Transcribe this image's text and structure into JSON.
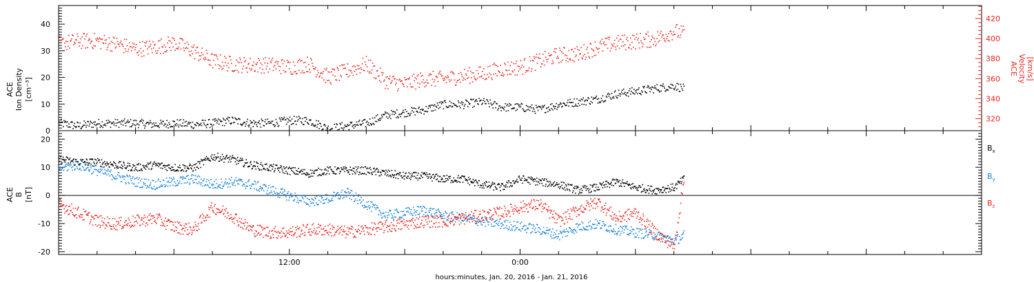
{
  "colors": {
    "black": "#000000",
    "red": "#e8221a",
    "blue": "#1a82d8",
    "frame": "#000000"
  },
  "chart_data": [
    {
      "type": "scatter",
      "panel": "plasma",
      "ylabel_lines": [
        "ACE",
        "Ion Density",
        "[cm⁻³]"
      ],
      "ylim": [
        0,
        47
      ],
      "yticks": [
        "0",
        "10",
        "20",
        "30",
        "40"
      ],
      "right_axis": {
        "label_lines": [
          "ACE",
          "Velocity",
          "[km/s]"
        ],
        "ylim": [
          308,
          433
        ],
        "yticks": [
          "320",
          "340",
          "360",
          "380",
          "400",
          "420"
        ]
      },
      "xlim_hours": [
        0,
        48
      ],
      "data_end_hour": 32.5,
      "series": [
        {
          "color_key": "black",
          "axis": "left",
          "note": "ion density, points approx every 7 minutes",
          "anchors": [
            [
              0,
              3
            ],
            [
              1,
              2
            ],
            [
              2,
              3
            ],
            [
              3,
              3
            ],
            [
              4,
              3
            ],
            [
              5,
              2.5
            ],
            [
              6,
              3
            ],
            [
              7,
              2.5
            ],
            [
              8,
              3
            ],
            [
              9,
              4
            ],
            [
              10,
              3
            ],
            [
              11,
              3
            ],
            [
              12,
              4
            ],
            [
              13,
              4
            ],
            [
              14,
              1
            ],
            [
              15,
              2
            ],
            [
              16,
              3
            ],
            [
              17,
              6
            ],
            [
              18,
              7
            ],
            [
              19,
              8
            ],
            [
              20,
              10
            ],
            [
              21,
              10
            ],
            [
              22,
              11
            ],
            [
              23,
              9
            ],
            [
              24,
              9
            ],
            [
              25,
              8
            ],
            [
              26,
              10
            ],
            [
              27,
              11
            ],
            [
              28,
              12
            ],
            [
              29,
              14
            ],
            [
              30,
              15
            ],
            [
              31,
              16
            ],
            [
              32,
              17
            ],
            [
              32.5,
              16
            ]
          ]
        },
        {
          "color_key": "red",
          "axis": "right",
          "note": "proton speed",
          "anchors": [
            [
              0,
              395
            ],
            [
              1,
              398
            ],
            [
              2,
              398
            ],
            [
              3,
              395
            ],
            [
              4,
              390
            ],
            [
              5,
              392
            ],
            [
              6,
              396
            ],
            [
              7,
              388
            ],
            [
              8,
              378
            ],
            [
              9,
              375
            ],
            [
              10,
              374
            ],
            [
              11,
              374
            ],
            [
              12,
              372
            ],
            [
              13,
              375
            ],
            [
              14,
              362
            ],
            [
              15,
              368
            ],
            [
              16,
              375
            ],
            [
              17,
              358
            ],
            [
              18,
              355
            ],
            [
              19,
              360
            ],
            [
              20,
              360
            ],
            [
              21,
              363
            ],
            [
              22,
              365
            ],
            [
              23,
              370
            ],
            [
              24,
              372
            ],
            [
              25,
              378
            ],
            [
              26,
              384
            ],
            [
              27,
              385
            ],
            [
              28,
              392
            ],
            [
              29,
              396
            ],
            [
              30,
              398
            ],
            [
              31,
              400
            ],
            [
              32,
              408
            ],
            [
              32.5,
              405
            ]
          ]
        }
      ]
    },
    {
      "type": "scatter",
      "panel": "magnetic",
      "ylabel_lines": [
        "ACE",
        "B",
        "[nT]"
      ],
      "ylim": [
        -21,
        23
      ],
      "yticks": [
        "-20",
        "-10",
        "0",
        "10",
        "20"
      ],
      "zero_line": 0,
      "xlim_hours": [
        0,
        48
      ],
      "data_end_hour": 32.5,
      "series": [
        {
          "name": "B",
          "sub": "x",
          "color_key": "black",
          "anchors": [
            [
              0,
              13
            ],
            [
              1,
              12
            ],
            [
              2,
              12
            ],
            [
              3,
              11
            ],
            [
              4,
              10
            ],
            [
              5,
              11
            ],
            [
              6,
              10
            ],
            [
              7,
              10
            ],
            [
              8,
              14
            ],
            [
              9,
              13
            ],
            [
              10,
              11
            ],
            [
              11,
              10
            ],
            [
              12,
              9
            ],
            [
              13,
              8
            ],
            [
              14,
              9
            ],
            [
              15,
              9
            ],
            [
              16,
              9
            ],
            [
              17,
              8
            ],
            [
              18,
              7
            ],
            [
              19,
              7
            ],
            [
              20,
              6
            ],
            [
              21,
              6
            ],
            [
              22,
              4
            ],
            [
              23,
              3
            ],
            [
              24,
              6
            ],
            [
              25,
              5
            ],
            [
              26,
              4
            ],
            [
              27,
              2
            ],
            [
              28,
              3
            ],
            [
              29,
              5
            ],
            [
              30,
              3
            ],
            [
              31,
              2
            ],
            [
              32,
              3
            ],
            [
              32.5,
              6
            ]
          ]
        },
        {
          "name": "B",
          "sub": "y",
          "color_key": "blue",
          "anchors": [
            [
              0,
              10
            ],
            [
              1,
              11
            ],
            [
              2,
              9
            ],
            [
              3,
              7
            ],
            [
              4,
              5
            ],
            [
              5,
              4
            ],
            [
              6,
              5
            ],
            [
              7,
              6
            ],
            [
              8,
              4
            ],
            [
              9,
              5
            ],
            [
              10,
              4
            ],
            [
              11,
              2
            ],
            [
              12,
              0
            ],
            [
              13,
              -2
            ],
            [
              14,
              -1
            ],
            [
              15,
              1
            ],
            [
              16,
              -3
            ],
            [
              17,
              -7
            ],
            [
              18,
              -6
            ],
            [
              19,
              -5
            ],
            [
              20,
              -7
            ],
            [
              21,
              -8
            ],
            [
              22,
              -9
            ],
            [
              23,
              -10
            ],
            [
              24,
              -11
            ],
            [
              25,
              -12
            ],
            [
              26,
              -14
            ],
            [
              27,
              -11
            ],
            [
              28,
              -10
            ],
            [
              29,
              -12
            ],
            [
              30,
              -13
            ],
            [
              31,
              -14
            ],
            [
              32,
              -16
            ],
            [
              32.5,
              -14
            ]
          ]
        },
        {
          "name": "B",
          "sub": "z",
          "color_key": "red",
          "anchors": [
            [
              0,
              -3
            ],
            [
              1,
              -6
            ],
            [
              2,
              -9
            ],
            [
              3,
              -10
            ],
            [
              4,
              -9
            ],
            [
              5,
              -8
            ],
            [
              6,
              -11
            ],
            [
              7,
              -12
            ],
            [
              8,
              -4
            ],
            [
              9,
              -7
            ],
            [
              10,
              -12
            ],
            [
              11,
              -13
            ],
            [
              12,
              -13
            ],
            [
              13,
              -12
            ],
            [
              14,
              -12
            ],
            [
              15,
              -13
            ],
            [
              16,
              -12
            ],
            [
              17,
              -11
            ],
            [
              18,
              -10
            ],
            [
              19,
              -9
            ],
            [
              20,
              -9
            ],
            [
              21,
              -8
            ],
            [
              22,
              -7
            ],
            [
              23,
              -6
            ],
            [
              24,
              -4
            ],
            [
              25,
              -3
            ],
            [
              26,
              -9
            ],
            [
              27,
              -5
            ],
            [
              28,
              -2
            ],
            [
              29,
              -8
            ],
            [
              30,
              -6
            ],
            [
              31,
              -13
            ],
            [
              32,
              -18
            ],
            [
              32.5,
              6
            ]
          ]
        }
      ]
    }
  ],
  "x_axis": {
    "ticks": [
      {
        "label": "12:00",
        "hour": 12
      },
      {
        "label": "0:00",
        "hour": 24
      }
    ],
    "minor_every_hours": 2,
    "title": "hours:minutes, Jan. 20, 2016 - Jan. 21, 2016"
  }
}
